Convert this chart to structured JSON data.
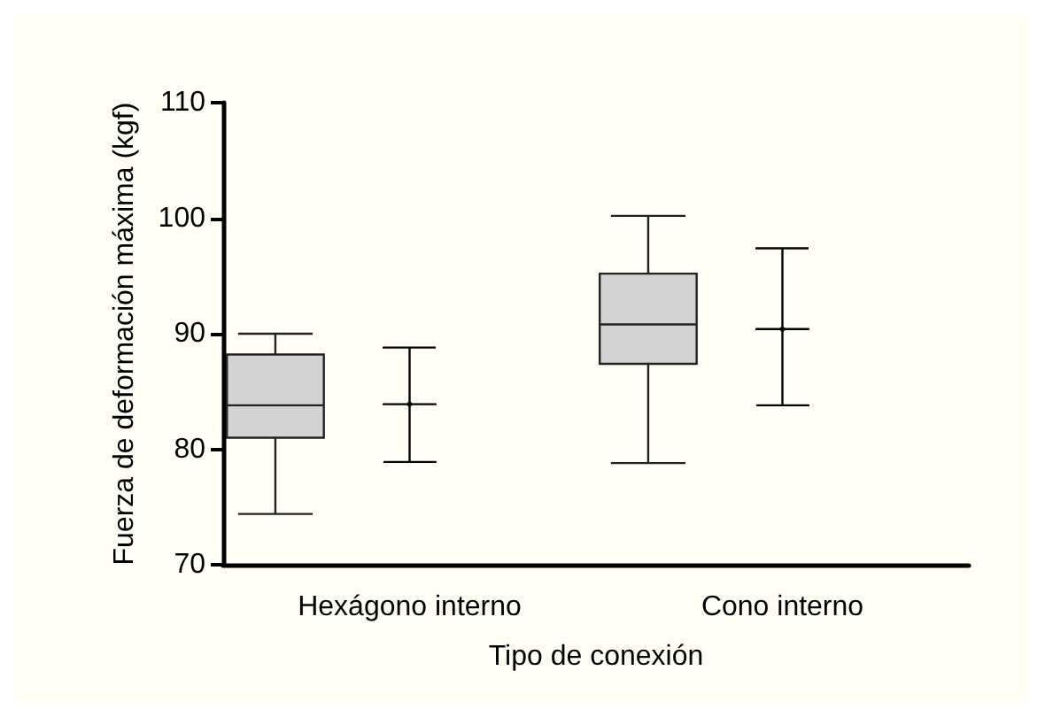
{
  "chart_data": {
    "type": "box",
    "categories": [
      "Hexágono interno",
      "Cono interno"
    ],
    "xlabel": "Tipo de conexión",
    "ylabel": "Fuerza de deformación máxima (kgf)",
    "ylim": [
      70,
      110
    ],
    "yticks": [
      70,
      80,
      90,
      100,
      110
    ],
    "grid": false,
    "series": [
      {
        "color": "#d3d3d3",
        "boxes": [
          {
            "low": 74.4,
            "q1": 81.0,
            "median": 83.8,
            "q3": 88.2,
            "high": 90.0
          },
          {
            "low": 78.8,
            "q1": 87.4,
            "median": 90.8,
            "q3": 95.2,
            "high": 100.2
          }
        ]
      },
      {
        "type": "scatter",
        "color": "#000000",
        "x": [
          "Hexágono interno",
          "Cono interno"
        ],
        "values": [
          83.9,
          90.4
        ],
        "errors": [
          [
            78.9,
            88.8
          ],
          [
            83.8,
            97.4
          ]
        ]
      }
    ]
  }
}
